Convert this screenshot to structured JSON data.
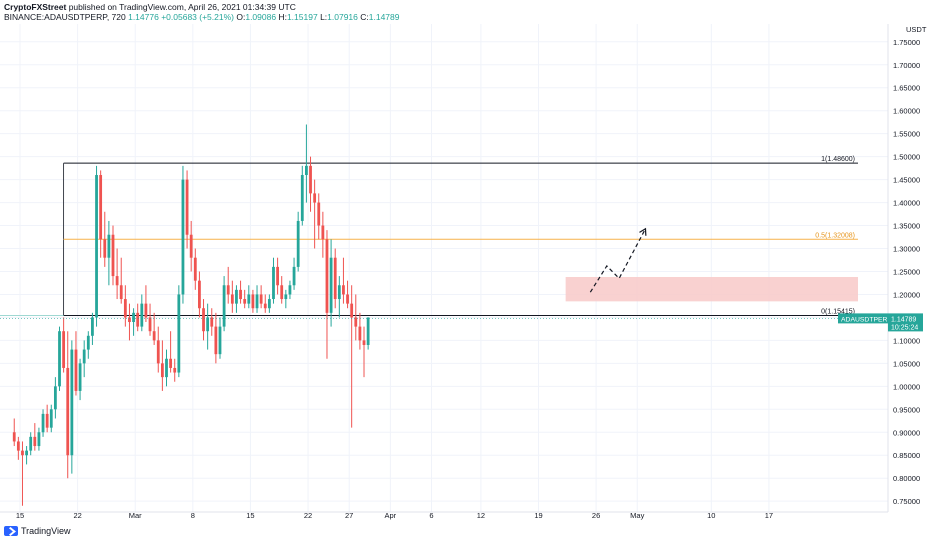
{
  "header": {
    "line1_bold": "CryptoFXStreet",
    "line1_text": " published on TradingView.com, April 26, 2021 01:34:39 UTC",
    "symbol": "BINANCE:ADAUSDTPERP, 720",
    "price": "1.14776",
    "change": "+0.05683 (+5.21%)",
    "o_label": "O:",
    "o_value": "1.09086",
    "h_label": "H:",
    "h_value": "1.15197",
    "l_label": "L:",
    "l_value": "1.07916",
    "c_label": "C:",
    "c_value": "1.14789"
  },
  "footer": {
    "logo_text": "TradingView"
  },
  "colors": {
    "up": "#26a69a",
    "down": "#ef5350",
    "fib": "#f7b24a",
    "zone": "#f8c9c8",
    "line": "#131722",
    "tag": "#26a69a"
  },
  "chart_data": {
    "type": "candlestick",
    "y_axis_label": "USDT",
    "ylim": [
      0.73,
      1.79
    ],
    "y_ticks": [
      0.75,
      0.8,
      0.85,
      0.9,
      0.95,
      1.0,
      1.05,
      1.1,
      1.15,
      1.2,
      1.25,
      1.3,
      1.35,
      1.4,
      1.45,
      1.5,
      1.55,
      1.6,
      1.65,
      1.7,
      1.75
    ],
    "y_tick_labels": [
      "0.75000",
      "0.80000",
      "0.85000",
      "0.90000",
      "0.95000",
      "1.00000",
      "1.05000",
      "1.10000",
      "1.15000",
      "1.20000",
      "1.25000",
      "1.30000",
      "1.35000",
      "1.40000",
      "1.45000",
      "1.50000",
      "1.55000",
      "1.60000",
      "1.65000",
      "1.70000",
      "1.75000"
    ],
    "x_range": [
      14.3,
      96
    ],
    "x_ticks": [
      {
        "label": "15",
        "day": 15
      },
      {
        "label": "22",
        "day": 22
      },
      {
        "label": "Mar",
        "day": 29
      },
      {
        "label": "8",
        "day": 36
      },
      {
        "label": "15",
        "day": 43
      },
      {
        "label": "22",
        "day": 50
      },
      {
        "label": "27",
        "day": 55
      },
      {
        "label": "Apr",
        "day": 60
      },
      {
        "label": "6",
        "day": 65
      },
      {
        "label": "12",
        "day": 71
      },
      {
        "label": "19",
        "day": 78
      },
      {
        "label": "26",
        "day": 85
      },
      {
        "label": "May",
        "day": 90
      },
      {
        "label": "10",
        "day": 99
      },
      {
        "label": "17",
        "day": 106
      }
    ],
    "candles": [
      [
        0.9,
        0.93,
        0.87,
        0.88
      ],
      [
        0.88,
        0.89,
        0.84,
        0.86
      ],
      [
        0.86,
        0.88,
        0.74,
        0.85
      ],
      [
        0.85,
        0.87,
        0.83,
        0.86
      ],
      [
        0.86,
        0.9,
        0.85,
        0.89
      ],
      [
        0.89,
        0.92,
        0.86,
        0.87
      ],
      [
        0.87,
        0.91,
        0.86,
        0.9
      ],
      [
        0.9,
        0.95,
        0.89,
        0.94
      ],
      [
        0.94,
        0.96,
        0.9,
        0.91
      ],
      [
        0.91,
        0.96,
        0.9,
        0.95
      ],
      [
        0.95,
        1.02,
        0.93,
        1.0
      ],
      [
        1.0,
        1.13,
        0.99,
        1.12
      ],
      [
        1.12,
        1.15,
        1.03,
        1.04
      ],
      [
        1.04,
        1.12,
        0.8,
        0.85
      ],
      [
        0.85,
        1.1,
        0.81,
        1.08
      ],
      [
        1.08,
        1.12,
        0.98,
        0.99
      ],
      [
        0.99,
        1.06,
        0.97,
        1.05
      ],
      [
        1.05,
        1.1,
        1.02,
        1.08
      ],
      [
        1.08,
        1.12,
        1.06,
        1.11
      ],
      [
        1.11,
        1.16,
        1.09,
        1.15
      ],
      [
        1.15,
        1.48,
        1.13,
        1.46
      ],
      [
        1.46,
        1.47,
        1.28,
        1.32
      ],
      [
        1.32,
        1.38,
        1.26,
        1.28
      ],
      [
        1.28,
        1.36,
        1.22,
        1.33
      ],
      [
        1.33,
        1.35,
        1.22,
        1.24
      ],
      [
        1.24,
        1.3,
        1.19,
        1.22
      ],
      [
        1.22,
        1.28,
        1.18,
        1.19
      ],
      [
        1.19,
        1.22,
        1.13,
        1.15
      ],
      [
        1.15,
        1.18,
        1.1,
        1.14
      ],
      [
        1.14,
        1.17,
        1.11,
        1.16
      ],
      [
        1.16,
        1.18,
        1.12,
        1.13
      ],
      [
        1.13,
        1.2,
        1.12,
        1.18
      ],
      [
        1.18,
        1.22,
        1.14,
        1.15
      ],
      [
        1.15,
        1.18,
        1.11,
        1.12
      ],
      [
        1.12,
        1.16,
        1.09,
        1.1
      ],
      [
        1.1,
        1.13,
        1.03,
        1.05
      ],
      [
        1.05,
        1.1,
        0.99,
        1.02
      ],
      [
        1.02,
        1.08,
        1.0,
        1.06
      ],
      [
        1.06,
        1.12,
        1.03,
        1.04
      ],
      [
        1.04,
        1.06,
        1.01,
        1.03
      ],
      [
        1.03,
        1.22,
        1.02,
        1.2
      ],
      [
        1.2,
        1.48,
        1.18,
        1.45
      ],
      [
        1.45,
        1.47,
        1.3,
        1.33
      ],
      [
        1.33,
        1.36,
        1.25,
        1.28
      ],
      [
        1.28,
        1.3,
        1.21,
        1.23
      ],
      [
        1.23,
        1.25,
        1.15,
        1.17
      ],
      [
        1.17,
        1.19,
        1.1,
        1.12
      ],
      [
        1.12,
        1.18,
        1.08,
        1.15
      ],
      [
        1.15,
        1.17,
        1.11,
        1.13
      ],
      [
        1.13,
        1.16,
        1.05,
        1.07
      ],
      [
        1.07,
        1.15,
        1.06,
        1.13
      ],
      [
        1.13,
        1.24,
        1.12,
        1.22
      ],
      [
        1.22,
        1.26,
        1.18,
        1.2
      ],
      [
        1.2,
        1.23,
        1.16,
        1.18
      ],
      [
        1.18,
        1.22,
        1.16,
        1.21
      ],
      [
        1.21,
        1.23,
        1.18,
        1.19
      ],
      [
        1.19,
        1.21,
        1.17,
        1.18
      ],
      [
        1.18,
        1.22,
        1.17,
        1.2
      ],
      [
        1.2,
        1.21,
        1.16,
        1.17
      ],
      [
        1.17,
        1.22,
        1.16,
        1.2
      ],
      [
        1.2,
        1.22,
        1.17,
        1.18
      ],
      [
        1.18,
        1.2,
        1.16,
        1.17
      ],
      [
        1.17,
        1.2,
        1.16,
        1.19
      ],
      [
        1.19,
        1.28,
        1.18,
        1.26
      ],
      [
        1.26,
        1.28,
        1.2,
        1.22
      ],
      [
        1.22,
        1.24,
        1.18,
        1.19
      ],
      [
        1.19,
        1.21,
        1.17,
        1.2
      ],
      [
        1.2,
        1.23,
        1.19,
        1.22
      ],
      [
        1.22,
        1.28,
        1.21,
        1.26
      ],
      [
        1.26,
        1.38,
        1.25,
        1.36
      ],
      [
        1.36,
        1.48,
        1.35,
        1.46
      ],
      [
        1.46,
        1.57,
        1.4,
        1.48
      ],
      [
        1.48,
        1.5,
        1.38,
        1.42
      ],
      [
        1.42,
        1.45,
        1.3,
        1.4
      ],
      [
        1.4,
        1.42,
        1.32,
        1.35
      ],
      [
        1.35,
        1.38,
        1.28,
        1.32
      ],
      [
        1.32,
        1.34,
        1.06,
        1.16
      ],
      [
        1.16,
        1.32,
        1.13,
        1.28
      ],
      [
        1.28,
        1.3,
        1.17,
        1.19
      ],
      [
        1.19,
        1.24,
        1.15,
        1.22
      ],
      [
        1.22,
        1.28,
        1.18,
        1.2
      ],
      [
        1.2,
        1.23,
        1.17,
        1.18
      ],
      [
        1.18,
        1.22,
        0.91,
        1.15
      ],
      [
        1.15,
        1.2,
        1.1,
        1.13
      ],
      [
        1.13,
        1.16,
        1.08,
        1.1
      ],
      [
        1.1,
        1.13,
        1.02,
        1.09
      ],
      [
        1.09,
        1.15,
        1.08,
        1.15
      ]
    ],
    "levels": [
      {
        "label": "1(1.48600)",
        "value": 1.486,
        "color": "#131722"
      },
      {
        "label": "0.5(1.32008)",
        "value": 1.32008,
        "color": "#f7b24a"
      },
      {
        "label": "0(1.15415)",
        "value": 1.15415,
        "color": "#131722"
      }
    ],
    "demand_zone": [
      1.185,
      1.238
    ],
    "projection_path": [
      [
        84.3,
        1.205
      ],
      [
        86.3,
        1.262
      ],
      [
        87.8,
        1.235
      ],
      [
        91.0,
        1.343
      ]
    ],
    "price_tag": {
      "label": "ADAUSDTPERP",
      "value": "1.14789",
      "countdown": "10:25:24",
      "price": 1.14789
    }
  }
}
